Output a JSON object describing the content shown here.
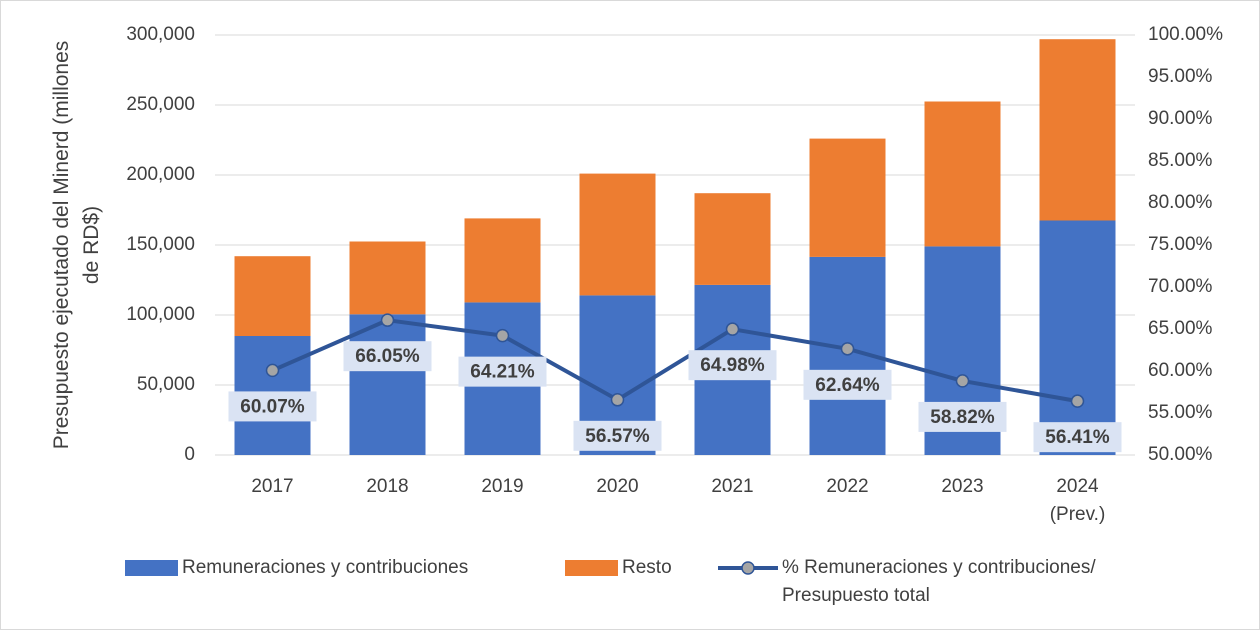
{
  "chart_data": {
    "type": "bar",
    "y_label": "Presupuesto ejecutado del Minerd (millones\nde RD$)",
    "categories": [
      "2017",
      "2018",
      "2019",
      "2020",
      "2021",
      "2022",
      "2023",
      "2024\n(Prev.)"
    ],
    "series": [
      {
        "name": "Remuneraciones y contribuciones",
        "color": "#4472c4",
        "values": [
          85000,
          100500,
          109000,
          114000,
          121500,
          141500,
          149000,
          167500
        ]
      },
      {
        "name": "Resto",
        "color": "#ed7d31",
        "values": [
          57000,
          52000,
          60000,
          87000,
          65500,
          84500,
          103500,
          129500
        ]
      },
      {
        "name": "% Remuneraciones y contribuciones/\nPresupuesto total",
        "type": "line",
        "axis": "y2",
        "color": "#2f5597",
        "marker_color": "#a5a5a5",
        "values": [
          60.07,
          66.05,
          64.21,
          56.57,
          64.98,
          62.64,
          58.82,
          56.41
        ],
        "value_labels": [
          "60.07%",
          "66.05%",
          "64.21%",
          "56.57%",
          "64.98%",
          "62.64%",
          "58.82%",
          "56.41%"
        ]
      }
    ],
    "stacked": true,
    "ylim": [
      0,
      300000
    ],
    "yticks": [
      {
        "value": 0,
        "label": "0"
      },
      {
        "value": 50000,
        "label": "50,000"
      },
      {
        "value": 100000,
        "label": "100,000"
      },
      {
        "value": 150000,
        "label": "150,000"
      },
      {
        "value": 200000,
        "label": "200,000"
      },
      {
        "value": 250000,
        "label": "250,000"
      },
      {
        "value": 300000,
        "label": "300,000"
      }
    ],
    "y2lim": [
      50,
      100
    ],
    "y2ticks": [
      {
        "value": 50,
        "label": "50.00%"
      },
      {
        "value": 55,
        "label": "55.00%"
      },
      {
        "value": 60,
        "label": "60.00%"
      },
      {
        "value": 65,
        "label": "65.00%"
      },
      {
        "value": 70,
        "label": "70.00%"
      },
      {
        "value": 75,
        "label": "75.00%"
      },
      {
        "value": 80,
        "label": "80.00%"
      },
      {
        "value": 85,
        "label": "85.00%"
      },
      {
        "value": 90,
        "label": "90.00%"
      },
      {
        "value": 95,
        "label": "95.00%"
      },
      {
        "value": 100,
        "label": "100.00%"
      }
    ],
    "grid": true,
    "legend": "bottom"
  }
}
